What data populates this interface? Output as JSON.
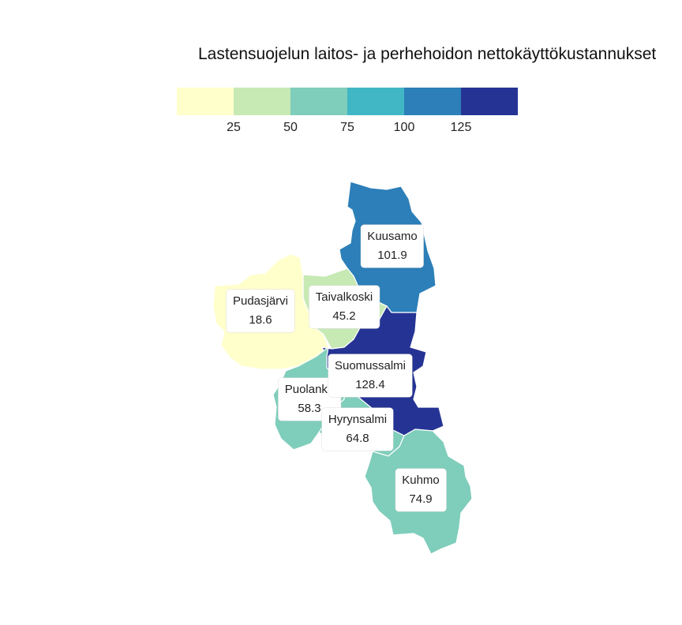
{
  "title": "Lastensuojelun laitos- ja perhehoidon nettokäyttökustannukset",
  "legend": {
    "colors": [
      "#ffffcc",
      "#c7e9b4",
      "#7fcdbb",
      "#41b6c4",
      "#2c7fb8",
      "#253494"
    ],
    "ticks": [
      "25",
      "50",
      "75",
      "100",
      "125"
    ]
  },
  "regions": [
    {
      "name": "Kuusamo",
      "value": "101.9",
      "color": "#2c7fb8"
    },
    {
      "name": "Taivalkoski",
      "value": "45.2",
      "color": "#c7e9b4"
    },
    {
      "name": "Pudasjärvi",
      "value": "18.6",
      "color": "#ffffcc"
    },
    {
      "name": "Suomussalmi",
      "value": "128.4",
      "color": "#253494"
    },
    {
      "name": "Puolanka",
      "value": "58.3",
      "color": "#7fcdbb"
    },
    {
      "name": "Hyrynsalmi",
      "value": "64.8",
      "color": "#7fcdbb"
    },
    {
      "name": "Kuhmo",
      "value": "74.9",
      "color": "#7fcdbb"
    }
  ]
}
